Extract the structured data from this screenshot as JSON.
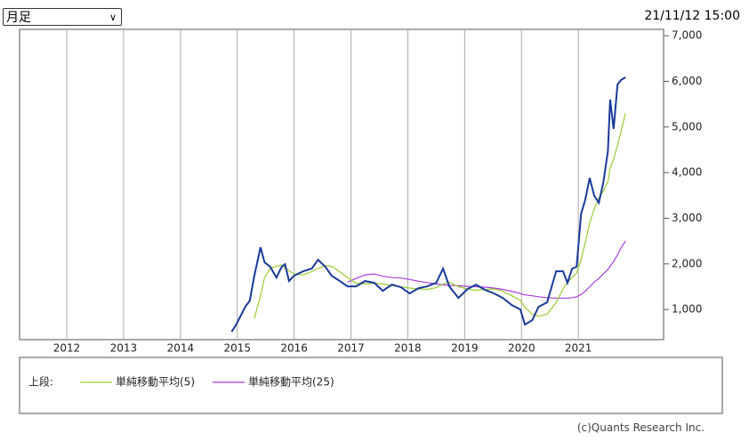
{
  "selector": "月足",
  "timestamp": "21/11/12 15:00",
  "copyright": "(c)Quants Research Inc.",
  "chart_data": {
    "type": "line",
    "x": [
      2014.9,
      2014.98,
      2015.06,
      2015.14,
      2015.22,
      2015.3,
      2015.41,
      2015.48,
      2015.58,
      2015.69,
      2015.78,
      2015.84,
      2015.91,
      2016.0,
      2016.16,
      2016.31,
      2016.42,
      2016.55,
      2016.66,
      2016.78,
      2016.94,
      2017.09,
      2017.25,
      2017.41,
      2017.56,
      2017.72,
      2017.88,
      2018.03,
      2018.19,
      2018.34,
      2018.5,
      2018.62,
      2018.73,
      2018.89,
      2019.05,
      2019.2,
      2019.36,
      2019.52,
      2019.67,
      2019.83,
      2019.98,
      2020.06,
      2020.19,
      2020.3,
      2020.45,
      2020.61,
      2020.73,
      2020.81,
      2020.89,
      2020.97,
      2021.05,
      2021.12,
      2021.2,
      2021.28,
      2021.36,
      2021.44,
      2021.52,
      2021.56,
      2021.62,
      2021.69,
      2021.75,
      2021.83
    ],
    "series": [
      {
        "color": "#1a3a9a",
        "values": [
          513,
          670,
          864,
          1058,
          1195,
          1740,
          2365,
          2033,
          1935,
          1700,
          1935,
          1994,
          1624,
          1740,
          1838,
          1897,
          2092,
          1935,
          1740,
          1643,
          1507,
          1507,
          1624,
          1585,
          1409,
          1546,
          1487,
          1351,
          1468,
          1507,
          1585,
          1897,
          1507,
          1253,
          1448,
          1546,
          1429,
          1351,
          1253,
          1097,
          1000,
          670,
          766,
          1058,
          1156,
          1838,
          1838,
          1585,
          1897,
          1935,
          3105,
          3398,
          3885,
          3495,
          3339,
          3788,
          4470,
          5600,
          4957,
          5932,
          6029,
          6088
        ]
      },
      {
        "name": "単純移動平均(5)",
        "color": "#9acd32",
        "values": [
          null,
          null,
          null,
          null,
          null,
          800,
          1300,
          1700,
          1900,
          1950,
          1980,
          1900,
          1850,
          1780,
          1760,
          1830,
          1900,
          1960,
          1950,
          1850,
          1700,
          1580,
          1560,
          1580,
          1560,
          1520,
          1500,
          1470,
          1450,
          1440,
          1480,
          1560,
          1600,
          1500,
          1450,
          1420,
          1440,
          1450,
          1400,
          1300,
          1200,
          1050,
          900,
          850,
          900,
          1150,
          1450,
          1600,
          1700,
          1800,
          2100,
          2450,
          2900,
          3200,
          3450,
          3600,
          3800,
          4100,
          4300,
          4600,
          4900,
          5300
        ]
      },
      {
        "name": "単純移動平均(25)",
        "color": "#a93ce0",
        "values": [
          null,
          null,
          null,
          null,
          null,
          null,
          null,
          null,
          null,
          null,
          null,
          null,
          null,
          null,
          null,
          null,
          null,
          null,
          null,
          null,
          1600,
          1680,
          1760,
          1780,
          1730,
          1700,
          1690,
          1660,
          1620,
          1590,
          1560,
          1540,
          1530,
          1520,
          1510,
          1500,
          1490,
          1470,
          1440,
          1400,
          1350,
          1320,
          1300,
          1280,
          1260,
          1250,
          1250,
          1250,
          1260,
          1280,
          1330,
          1400,
          1500,
          1600,
          1680,
          1780,
          1880,
          1950,
          2050,
          2200,
          2350,
          2500
        ]
      }
    ],
    "legend_label": "上段:",
    "xlim": [
      2011.17,
      2022.5
    ],
    "xticks": [
      2012,
      2013,
      2014,
      2015,
      2016,
      2017,
      2018,
      2019,
      2020,
      2021
    ],
    "ylim": [
      340,
      7140
    ],
    "yticks": [
      {
        "value": 1000,
        "label": "1,000"
      },
      {
        "value": 2000,
        "label": "2,000"
      },
      {
        "value": 3000,
        "label": "3,000"
      },
      {
        "value": 4000,
        "label": "4,000"
      },
      {
        "value": 5000,
        "label": "5,000"
      },
      {
        "value": 6000,
        "label": "6,000"
      },
      {
        "value": 7000,
        "label": "7,000"
      }
    ],
    "grid": true
  }
}
